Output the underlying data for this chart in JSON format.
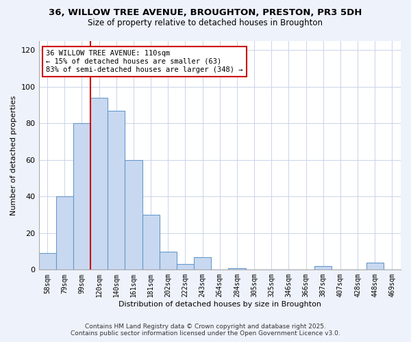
{
  "title_line1": "36, WILLOW TREE AVENUE, BROUGHTON, PRESTON, PR3 5DH",
  "title_line2": "Size of property relative to detached houses in Broughton",
  "xlabel": "Distribution of detached houses by size in Broughton",
  "ylabel": "Number of detached properties",
  "bar_labels": [
    "58sqm",
    "79sqm",
    "99sqm",
    "120sqm",
    "140sqm",
    "161sqm",
    "181sqm",
    "202sqm",
    "222sqm",
    "243sqm",
    "264sqm",
    "284sqm",
    "305sqm",
    "325sqm",
    "346sqm",
    "366sqm",
    "387sqm",
    "407sqm",
    "428sqm",
    "448sqm",
    "469sqm"
  ],
  "bar_values": [
    9,
    40,
    80,
    94,
    87,
    60,
    30,
    10,
    3,
    7,
    0,
    1,
    0,
    0,
    0,
    0,
    2,
    0,
    0,
    4,
    0
  ],
  "bar_color": "#c8d8f0",
  "bar_edge_color": "#6699cc",
  "property_line_label": "36 WILLOW TREE AVENUE: 110sqm",
  "annotation_smaller": "← 15% of detached houses are smaller (63)",
  "annotation_larger": "83% of semi-detached houses are larger (348) →",
  "vline_color": "#cc0000",
  "ylim": [
    0,
    125
  ],
  "yticks": [
    0,
    20,
    40,
    60,
    80,
    100,
    120
  ],
  "footer_line1": "Contains HM Land Registry data © Crown copyright and database right 2025.",
  "footer_line2": "Contains public sector information licensed under the Open Government Licence v3.0.",
  "bg_color": "#eef2fa",
  "plot_bg_color": "#ffffff",
  "grid_color": "#c8d4e8"
}
